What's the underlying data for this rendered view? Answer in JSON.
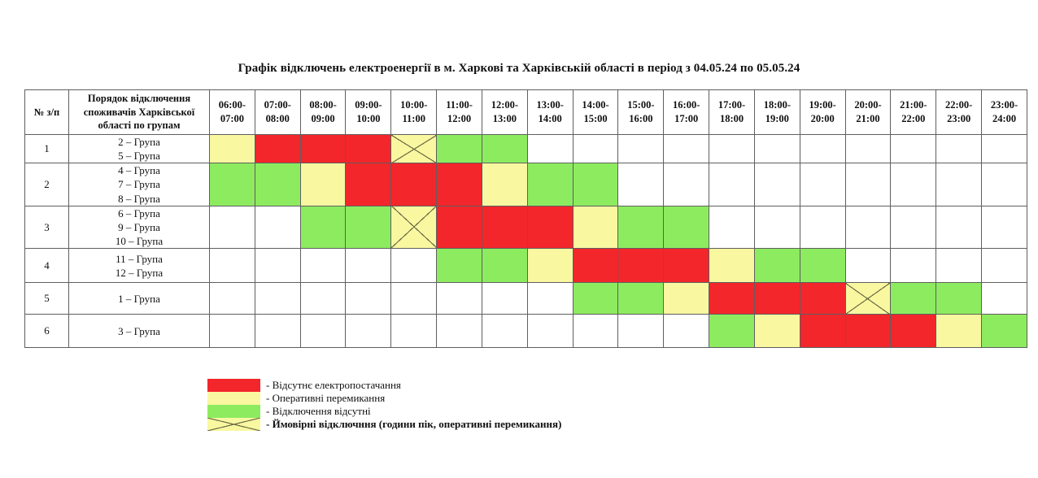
{
  "chart_data": {
    "type": "heatmap",
    "title": "Графік відключень електроенергії в м. Харкові та Харківській області в період з 04.05.24 по 05.05.24",
    "col_header_num": "№ з/п",
    "col_header_groups": "Порядок відключення споживачів Харківської області по групам",
    "columns": [
      "06:00-07:00",
      "07:00-08:00",
      "08:00-09:00",
      "09:00-10:00",
      "10:00-11:00",
      "11:00-12:00",
      "12:00-13:00",
      "13:00-14:00",
      "14:00-15:00",
      "15:00-16:00",
      "16:00-17:00",
      "17:00-18:00",
      "18:00-19:00",
      "19:00-20:00",
      "20:00-21:00",
      "21:00-22:00",
      "22:00-23:00",
      "23:00-24:00"
    ],
    "status_codes": {
      "r": "Відсутнє електропостачання",
      "y": "Оперативні перемикання",
      "g": "Відключення відсутні",
      "x": "Ймовірні відключння (години пік, оперативні перемикання)",
      "w": "порожньо"
    },
    "rows": [
      {
        "num": "1",
        "groups": [
          "2 – Група",
          "5 – Група"
        ],
        "cells": [
          "y",
          "r",
          "r",
          "r",
          "x",
          "g",
          "g",
          "w",
          "w",
          "w",
          "w",
          "w",
          "w",
          "w",
          "w",
          "w",
          "w",
          "w"
        ]
      },
      {
        "num": "2",
        "groups": [
          "4 – Група",
          "7 – Група",
          "8 – Група"
        ],
        "cells": [
          "g",
          "g",
          "y",
          "r",
          "r",
          "r",
          "y",
          "g",
          "g",
          "w",
          "w",
          "w",
          "w",
          "w",
          "w",
          "w",
          "w",
          "w"
        ]
      },
      {
        "num": "3",
        "groups": [
          "6 – Група",
          "9 – Група",
          "10 – Група"
        ],
        "cells": [
          "w",
          "w",
          "g",
          "g",
          "x",
          "r",
          "r",
          "r",
          "y",
          "g",
          "g",
          "w",
          "w",
          "w",
          "w",
          "w",
          "w",
          "w"
        ]
      },
      {
        "num": "4",
        "groups": [
          "11 – Група",
          "12 – Група"
        ],
        "cells": [
          "w",
          "w",
          "w",
          "w",
          "w",
          "g",
          "g",
          "y",
          "r",
          "r",
          "r",
          "y",
          "g",
          "g",
          "w",
          "w",
          "w",
          "w"
        ]
      },
      {
        "num": "5",
        "groups": [
          "1 – Група"
        ],
        "cells": [
          "w",
          "w",
          "w",
          "w",
          "w",
          "w",
          "w",
          "w",
          "g",
          "g",
          "y",
          "r",
          "r",
          "r",
          "x",
          "g",
          "g",
          "w"
        ]
      },
      {
        "num": "6",
        "groups": [
          "3 – Група"
        ],
        "cells": [
          "w",
          "w",
          "w",
          "w",
          "w",
          "w",
          "w",
          "w",
          "w",
          "w",
          "w",
          "g",
          "y",
          "r",
          "r",
          "r",
          "y",
          "g"
        ]
      }
    ]
  },
  "legend": {
    "items": [
      {
        "swatch": "red",
        "label": "- Відсутнє електропостачання"
      },
      {
        "swatch": "yellow",
        "label": "- Оперативні перемикання"
      },
      {
        "swatch": "green",
        "label": "- Відключення відсутні"
      },
      {
        "swatch": "x",
        "label": "- Ймовірні відключння (години пік, оперативні перемикання)"
      }
    ]
  },
  "colors": {
    "outage_red": "#f3262b",
    "switching_yellow": "#f9f7a0",
    "no_outage_green": "#8deb5f",
    "blank_white": "#ffffff",
    "grid_border": "#5f5f5f"
  }
}
